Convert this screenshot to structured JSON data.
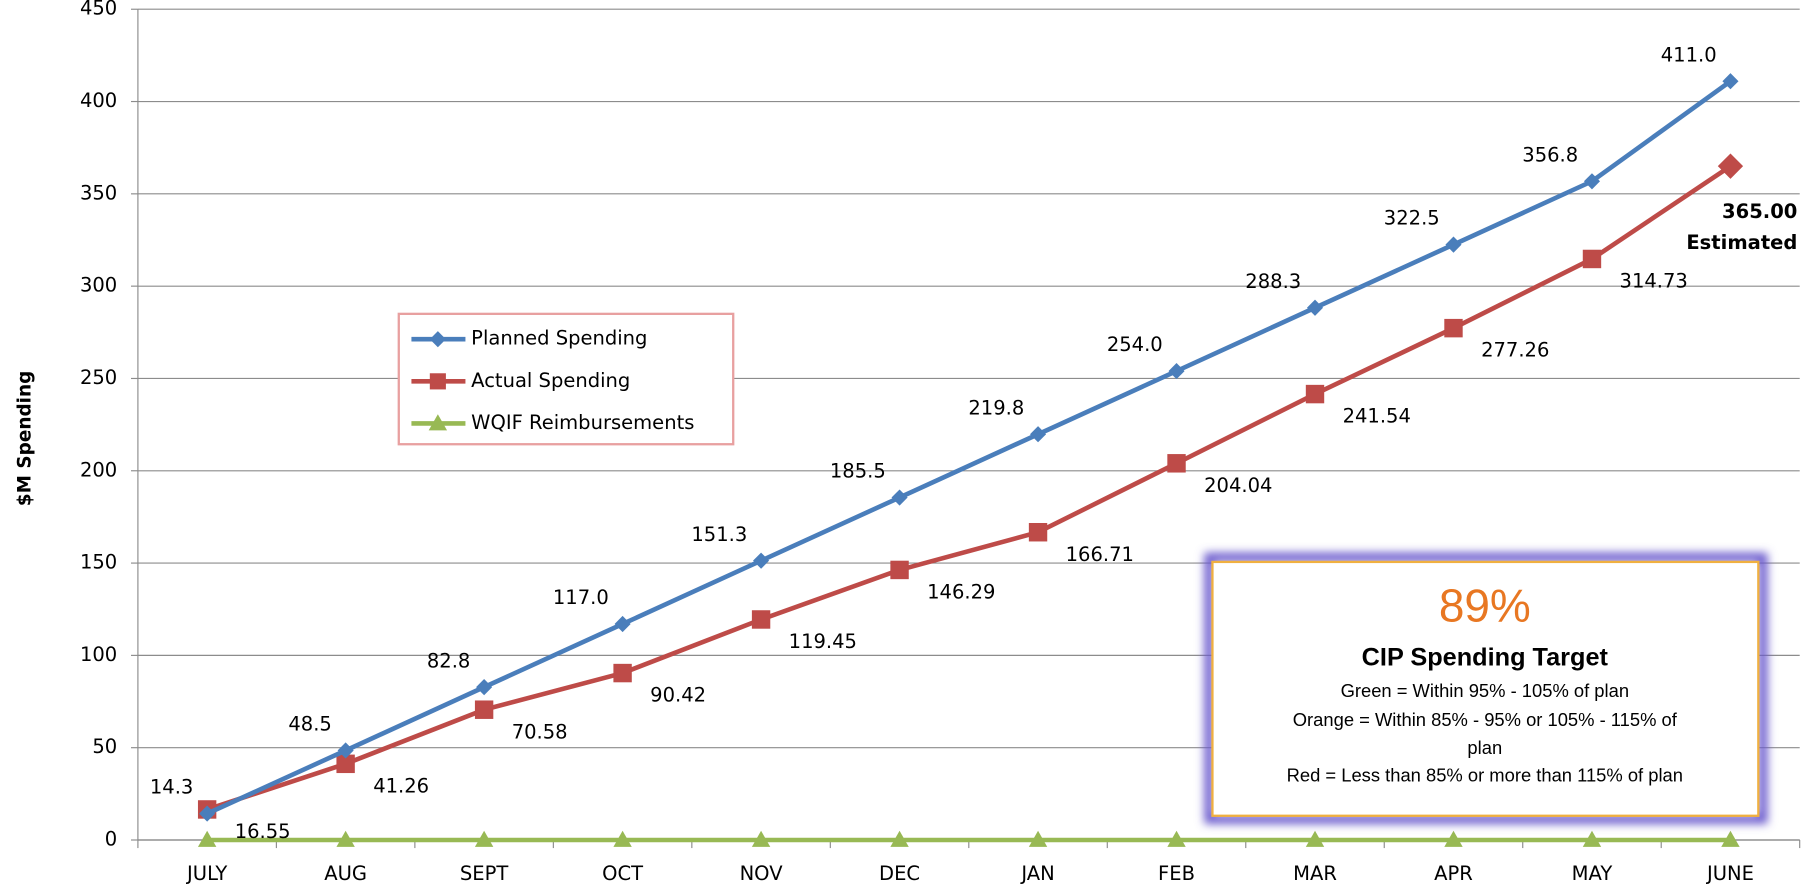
{
  "chart_data": {
    "type": "line",
    "y_label": "$M Spending",
    "categories": [
      "JULY",
      "AUG",
      "SEPT",
      "OCT",
      "NOV",
      "DEC",
      "JAN",
      "FEB",
      "MAR",
      "APR",
      "MAY",
      "JUNE"
    ],
    "series": [
      {
        "name": "Planned Spending",
        "color": "#4a7ebb",
        "marker": "diamond",
        "values": [
          14.3,
          48.5,
          82.8,
          117.0,
          151.3,
          185.5,
          219.8,
          254.0,
          288.3,
          322.5,
          356.8,
          411.0
        ],
        "value_labels": [
          "14.3",
          "48.5",
          "82.8",
          "117.0",
          "151.3",
          "185.5",
          "219.8",
          "254.0",
          "288.3",
          "322.5",
          "356.8",
          "411.0"
        ]
      },
      {
        "name": "Actual Spending",
        "color": "#be4b48",
        "marker": "square",
        "values": [
          16.55,
          41.26,
          70.58,
          90.42,
          119.45,
          146.29,
          166.71,
          204.04,
          241.54,
          277.26,
          314.73,
          365.0
        ],
        "value_labels": [
          "16.55",
          "41.26",
          "70.58",
          "90.42",
          "119.45",
          "146.29",
          "166.71",
          "204.04",
          "241.54",
          "277.26",
          "314.73",
          "365.00"
        ]
      },
      {
        "name": "WQIF Reimbursements",
        "color": "#98b954",
        "marker": "triangle",
        "values": [
          0,
          0,
          0,
          0,
          0,
          0,
          0,
          0,
          0,
          0,
          0,
          0
        ]
      }
    ],
    "estimate_note": "Estimated",
    "ylim": [
      0,
      450
    ],
    "yticks": [
      0,
      50,
      100,
      150,
      200,
      250,
      300,
      350,
      400,
      450
    ],
    "grid": true,
    "legend": "left",
    "target_box": {
      "percent": "89%",
      "title": "CIP Spending Target",
      "lines": [
        "Green = Within 95% - 105% of plan",
        "Orange = Within 85% - 95% or 105% - 115% of plan",
        "Red = Less than 85% or more than 115% of plan"
      ]
    }
  }
}
